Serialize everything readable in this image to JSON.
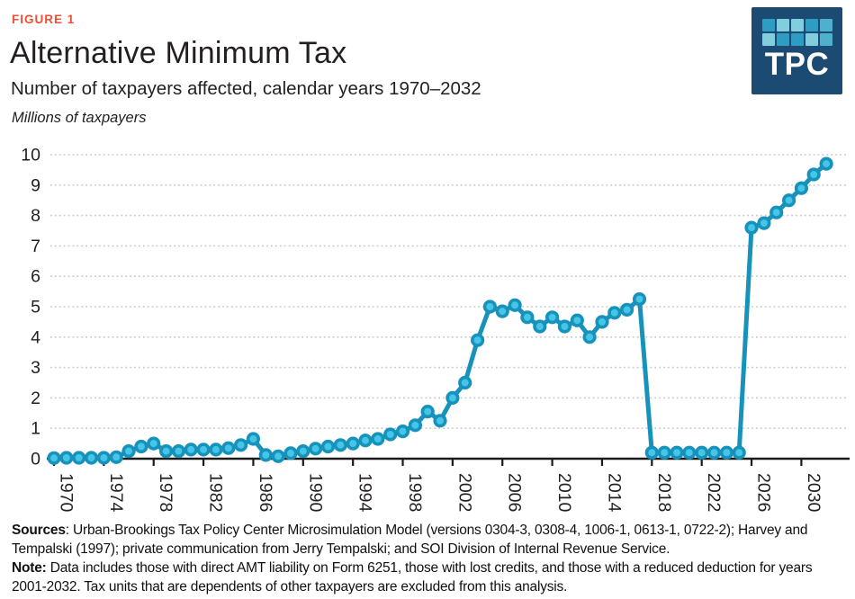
{
  "figure_label": "FIGURE 1",
  "title": "Alternative Minimum Tax",
  "subtitle": "Number of taxpayers affected, calendar years 1970–2032",
  "units_label": "Millions of taxpayers",
  "logo": {
    "text": "TPC",
    "bg_color": "#1B4A72",
    "square_colors": [
      "#2E9DC2",
      "#82CDDE",
      "#82CDDE",
      "#2E9DC2",
      "#4FB0CD",
      "#82CDDE",
      "#2E9DC2",
      "#2E9DC2",
      "#82CDDE",
      "#4FB0CD"
    ]
  },
  "colors": {
    "figure_label": "#EE5035",
    "line": "#1792BA",
    "marker_fill": "#45C6E9",
    "grid": "#C9C9C9",
    "axis": "#1A1A1A",
    "text": "#231F20"
  },
  "chart_data": {
    "type": "line",
    "title": "Alternative Minimum Tax",
    "subtitle": "Number of taxpayers affected, calendar years 1970-2032",
    "xlabel": "",
    "ylabel": "Millions of taxpayers",
    "ylim": [
      0,
      10
    ],
    "grid": "horizontal-dotted",
    "legend": "none",
    "marker": "circle",
    "y_ticks": [
      0,
      1,
      2,
      3,
      4,
      5,
      6,
      7,
      8,
      9,
      10
    ],
    "x_tick_years": [
      1970,
      1974,
      1978,
      1982,
      1986,
      1990,
      1994,
      1998,
      2002,
      2006,
      2010,
      2014,
      2018,
      2022,
      2026,
      2030
    ],
    "years": [
      1970,
      1971,
      1972,
      1973,
      1974,
      1975,
      1976,
      1977,
      1978,
      1979,
      1980,
      1981,
      1982,
      1983,
      1984,
      1985,
      1986,
      1987,
      1988,
      1989,
      1990,
      1991,
      1992,
      1993,
      1994,
      1995,
      1996,
      1997,
      1998,
      1999,
      2000,
      2001,
      2002,
      2003,
      2004,
      2005,
      2006,
      2007,
      2008,
      2009,
      2010,
      2011,
      2012,
      2013,
      2014,
      2015,
      2016,
      2017,
      2018,
      2019,
      2020,
      2021,
      2022,
      2023,
      2024,
      2025,
      2026,
      2027,
      2028,
      2029,
      2030,
      2031,
      2032
    ],
    "values": [
      0.02,
      0.03,
      0.03,
      0.03,
      0.03,
      0.05,
      0.25,
      0.4,
      0.5,
      0.25,
      0.25,
      0.3,
      0.3,
      0.3,
      0.35,
      0.45,
      0.65,
      0.12,
      0.08,
      0.18,
      0.25,
      0.33,
      0.4,
      0.45,
      0.5,
      0.6,
      0.65,
      0.8,
      0.9,
      1.1,
      1.55,
      1.25,
      2.0,
      2.5,
      3.9,
      5.0,
      4.85,
      5.05,
      4.65,
      4.35,
      4.65,
      4.35,
      4.55,
      4.0,
      4.5,
      4.8,
      4.9,
      5.25,
      0.2,
      0.2,
      0.2,
      0.2,
      0.2,
      0.2,
      0.2,
      0.2,
      7.6,
      7.75,
      8.1,
      8.5,
      8.9,
      9.35,
      9.7
    ]
  },
  "footer": {
    "sources_label": "Sources",
    "sources_text": ": Urban-Brookings Tax Policy Center Microsimulation Model (versions 0304-3, 0308-4, 1006-1, 0613-1, 0722-2); Harvey and Tempalski (1997); private communication from Jerry Tempalski; and SOI Division of Internal Revenue Service.",
    "note_label": "Note:",
    "note_text": " Data includes those with direct AMT liability on Form 6251, those with lost credits, and those with a reduced deduction for years 2001-2032. Tax units that are dependents of other taxpayers are excluded from this analysis."
  }
}
